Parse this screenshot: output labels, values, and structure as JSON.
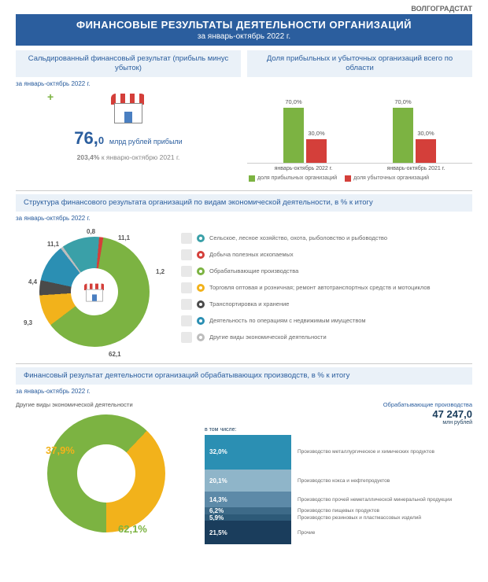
{
  "brand": "ВОЛГОГРАДСТАТ",
  "title": "ФИНАНСОВЫЕ РЕЗУЛЬТАТЫ ДЕЯТЕЛЬНОСТИ ОРГАНИЗАЦИЙ",
  "subtitle": "за январь-октябрь 2022 г.",
  "panel1": {
    "title": "Сальдированный финансовый результат (прибыль минус убыток)",
    "period": "за январь-октябрь 2022 г.",
    "value_int": "76,",
    "value_dec": "0",
    "value_label": "млрд рублей прибыли",
    "compare": "203,4% к январю-октябрю 2021 г.",
    "compare_pct": "203,4%"
  },
  "panel2": {
    "title": "Доля прибыльных и убыточных организаций всего по области",
    "chart": {
      "type": "bar",
      "ylim": [
        0,
        100
      ],
      "groups": [
        {
          "x": "январь-октябрь 2022 г.",
          "bars": [
            {
              "v": 70.0,
              "label": "70,0%",
              "color": "#7cb342"
            },
            {
              "v": 30.0,
              "label": "30,0%",
              "color": "#d43f3a"
            }
          ]
        },
        {
          "x": "январь-октябрь 2021 г.",
          "bars": [
            {
              "v": 70.0,
              "label": "70,0%",
              "color": "#7cb342"
            },
            {
              "v": 30.0,
              "label": "30,0%",
              "color": "#d43f3a"
            }
          ]
        }
      ],
      "legend": [
        {
          "color": "#7cb342",
          "label": "доля прибыльных организаций"
        },
        {
          "color": "#d43f3a",
          "label": "доля убыточных организаций"
        }
      ]
    }
  },
  "section2": {
    "title": "Структура финансового результата организаций по видам экономической деятельности, в % к итогу",
    "period": "за январь-октябрь 2022 г.",
    "donut": {
      "type": "pie",
      "slices": [
        {
          "v": 11.1,
          "color": "#3aa0a8",
          "label": "11,1"
        },
        {
          "v": 1.2,
          "color": "#d43f3a",
          "label": "1,2"
        },
        {
          "v": 62.1,
          "color": "#7cb342",
          "label": "62,1"
        },
        {
          "v": 9.3,
          "color": "#f2b21b",
          "label": "9,3"
        },
        {
          "v": 4.4,
          "color": "#4a4a4a",
          "label": "4,4"
        },
        {
          "v": 11.1,
          "color": "#2b8fb3",
          "label": "11,1"
        },
        {
          "v": 0.8,
          "color": "#bdbdbd",
          "label": "0,8"
        }
      ],
      "legend": [
        {
          "color": "#3aa0a8",
          "label": "Сельское, лесное хозяйство, охота, рыболовство и рыбоводство"
        },
        {
          "color": "#d43f3a",
          "label": "Добыча полезных ископаемых"
        },
        {
          "color": "#7cb342",
          "label": "Обрабатывающие производства"
        },
        {
          "color": "#f2b21b",
          "label": "Торговля оптовая и розничная; ремонт автотранспортных средств и мотоциклов"
        },
        {
          "color": "#4a4a4a",
          "label": "Транспортировка и хранение"
        },
        {
          "color": "#2b8fb3",
          "label": "Деятельность по операциям с недвижимым имуществом"
        },
        {
          "color": "#bdbdbd",
          "label": "Другие виды экономической деятельности"
        }
      ]
    }
  },
  "section3": {
    "title": "Финансовый результат деятельности организаций обрабатывающих производств, в % к итогу",
    "period": "за январь-октябрь 2022 г.",
    "arrow_note": "Другие виды экономической деятельности",
    "donut2": {
      "slices": [
        {
          "v": 62.1,
          "color": "#7cb342",
          "label": "62,1%"
        },
        {
          "v": 37.9,
          "color": "#f2b21b",
          "label": "37,9%"
        }
      ]
    },
    "stack_title": "Обрабатывающие производства",
    "stack_total": "47 247,0",
    "stack_unit": "млн рублей",
    "stack_sub": "в том числе:",
    "stack": {
      "type": "stacked-bar",
      "total_height": 140,
      "segments": [
        {
          "v": 32.0,
          "label": "32,0%",
          "color": "#2b8fb3",
          "name": "Производство металлургическое и химических продуктов"
        },
        {
          "v": 20.1,
          "label": "20,1%",
          "color": "#8fb5c9",
          "name": "Производство кокса и нефтепродуктов"
        },
        {
          "v": 14.3,
          "label": "14,3%",
          "color": "#5d8aa8",
          "name": "Производство прочей неметаллической минеральной продукции"
        },
        {
          "v": 6.2,
          "label": "6,2%",
          "color": "#3d6a88",
          "name": "Производство пищевых продуктов"
        },
        {
          "v": 5.9,
          "label": "5,9%",
          "color": "#2d5a78",
          "name": "Производство резиновых и пластмассовых изделий"
        },
        {
          "v": 21.5,
          "label": "21,5%",
          "color": "#1a3d5c",
          "name": "Прочие"
        }
      ]
    }
  },
  "colors": {
    "bg": "#ffffff",
    "primary": "#2b5e9e",
    "panel": "#eaf1f8"
  }
}
